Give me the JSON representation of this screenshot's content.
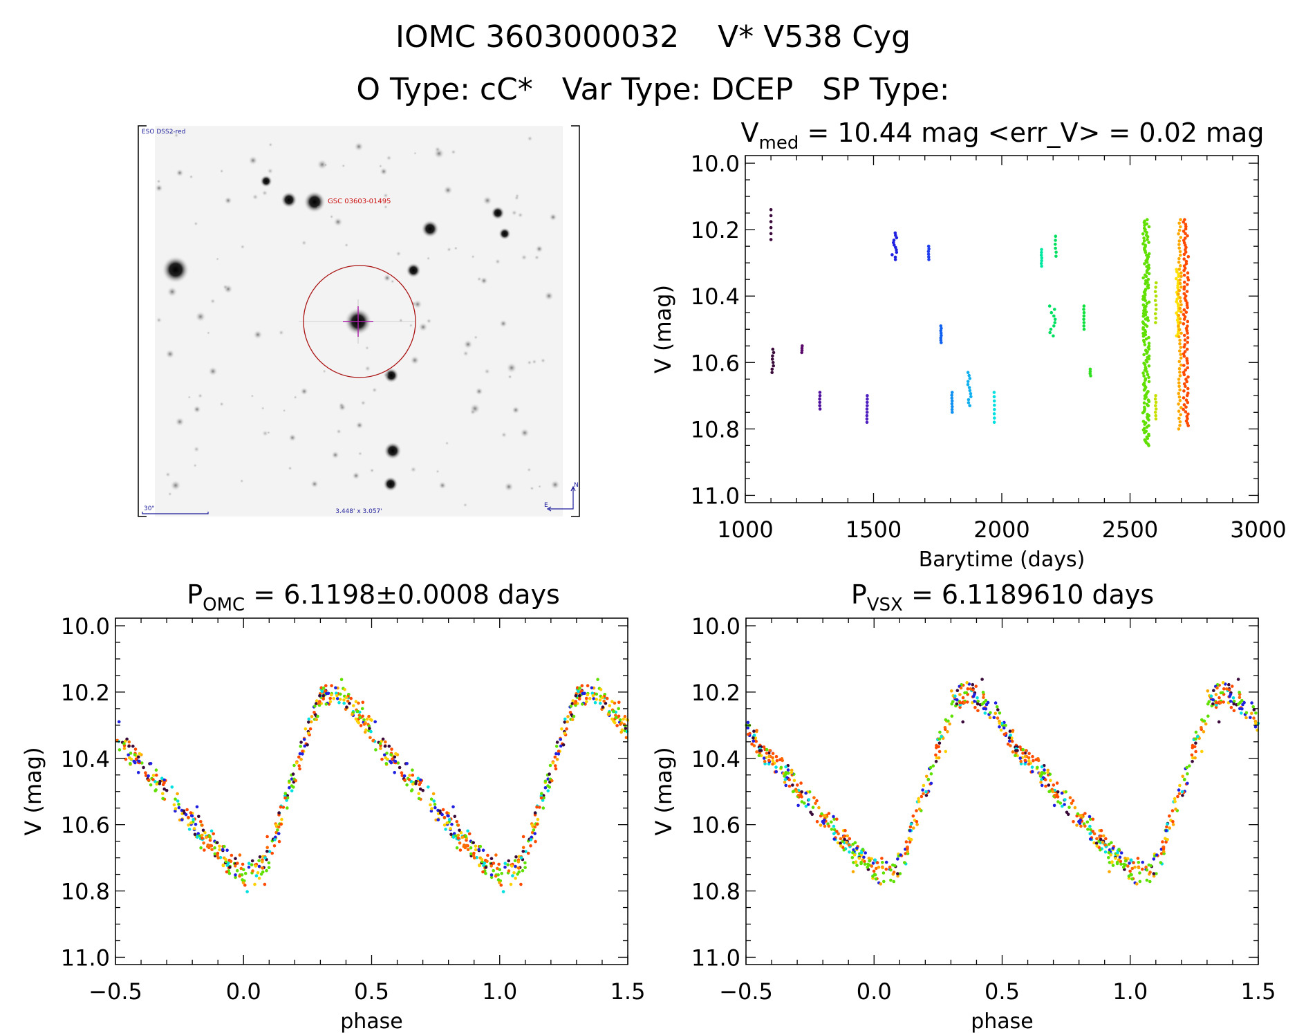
{
  "header": {
    "line1": "IOMC 3603000032    V* V538 Cyg",
    "line2": "O Type: cC*   Var Type: DCEP   SP Type:"
  },
  "sky_image": {
    "survey_label": "ESO DSS2-red",
    "star_label": "GSC 03603-01495",
    "scale_label": "30\"",
    "fov_label": "3.448' x 3.057'",
    "north_label": "N",
    "east_label": "E",
    "colors": {
      "label_blue": "#1a1a9a",
      "label_red": "#cc1111",
      "circle": "#aa1111",
      "cross": "#aa22aa"
    }
  },
  "chart_data": [
    {
      "id": "lightcurve",
      "type": "scatter",
      "title_main": "V",
      "title_sub": "med",
      "title_rest": " = 10.44 mag <err_V> = 0.02 mag",
      "xlabel": "Barytime (days)",
      "ylabel": "V (mag)",
      "xlim": [
        1000,
        3000
      ],
      "ylim": [
        9.977,
        11.022
      ],
      "y_inverted": true,
      "xticks": [
        1000,
        1500,
        2000,
        2500,
        3000
      ],
      "xtick_labels": [
        "1000",
        "1500",
        "2000",
        "2500",
        "3000"
      ],
      "x_minor_step": 100,
      "yticks": [
        10.0,
        10.2,
        10.4,
        10.6,
        10.8,
        11.0
      ],
      "ytick_labels": [
        "10.0",
        "10.2",
        "10.4",
        "10.6",
        "10.8",
        "11.0"
      ],
      "y_minor_step": 0.05,
      "grid": false,
      "clusters": [
        {
          "t": [
            1100,
            1100
          ],
          "v": [
            10.14,
            10.23
          ],
          "n": 6,
          "color": "#3a0a3a"
        },
        {
          "t": [
            1104,
            1112
          ],
          "v": [
            10.56,
            10.63
          ],
          "n": 8,
          "color": "#3a0a3a"
        },
        {
          "t": [
            1220,
            1222
          ],
          "v": [
            10.55,
            10.57
          ],
          "n": 4,
          "color": "#5a0a6a"
        },
        {
          "t": [
            1290,
            1292
          ],
          "v": [
            10.69,
            10.74
          ],
          "n": 6,
          "color": "#5010a0"
        },
        {
          "t": [
            1474,
            1476
          ],
          "v": [
            10.7,
            10.78
          ],
          "n": 9,
          "color": "#5020c0"
        },
        {
          "t": [
            1572,
            1590
          ],
          "v": [
            10.21,
            10.29
          ],
          "n": 12,
          "color": "#2020e0"
        },
        {
          "t": [
            1714,
            1716
          ],
          "v": [
            10.25,
            10.29
          ],
          "n": 6,
          "color": "#2040f0"
        },
        {
          "t": [
            1762,
            1764
          ],
          "v": [
            10.49,
            10.54
          ],
          "n": 8,
          "color": "#1060f0"
        },
        {
          "t": [
            1804,
            1807
          ],
          "v": [
            10.69,
            10.75
          ],
          "n": 8,
          "color": "#1090f0"
        },
        {
          "t": [
            1866,
            1880
          ],
          "v": [
            10.63,
            10.73
          ],
          "n": 12,
          "color": "#10b0f0"
        },
        {
          "t": [
            1970,
            1972
          ],
          "v": [
            10.69,
            10.78
          ],
          "n": 8,
          "color": "#00e0e0"
        },
        {
          "t": [
            2154,
            2156
          ],
          "v": [
            10.26,
            10.31
          ],
          "n": 7,
          "color": "#00e8a0"
        },
        {
          "t": [
            2185,
            2210
          ],
          "v": [
            10.43,
            10.52
          ],
          "n": 10,
          "color": "#00e060"
        },
        {
          "t": [
            2208,
            2212
          ],
          "v": [
            10.22,
            10.28
          ],
          "n": 6,
          "color": "#00e060"
        },
        {
          "t": [
            2319,
            2322
          ],
          "v": [
            10.43,
            10.5
          ],
          "n": 8,
          "color": "#10e040"
        },
        {
          "t": [
            2344,
            2347
          ],
          "v": [
            10.62,
            10.64
          ],
          "n": 4,
          "color": "#30e020"
        },
        {
          "t": [
            2550,
            2575
          ],
          "v": [
            10.17,
            10.85
          ],
          "n": 160,
          "color": "#60e000"
        },
        {
          "t": [
            2598,
            2602
          ],
          "v": [
            10.36,
            10.48
          ],
          "n": 10,
          "color": "#b0e000"
        },
        {
          "t": [
            2598,
            2602
          ],
          "v": [
            10.7,
            10.77
          ],
          "n": 8,
          "color": "#c8e000"
        },
        {
          "t": [
            2680,
            2690
          ],
          "v": [
            10.32,
            10.52
          ],
          "n": 30,
          "color": "#ffe000"
        },
        {
          "t": [
            2688,
            2700
          ],
          "v": [
            10.17,
            10.8
          ],
          "n": 60,
          "color": "#ffa800"
        },
        {
          "t": [
            2708,
            2728
          ],
          "v": [
            10.17,
            10.79
          ],
          "n": 90,
          "color": "#ff4a00"
        }
      ]
    },
    {
      "id": "phase_omc",
      "type": "scatter",
      "title_main": "P",
      "title_sub": "OMC",
      "title_rest": " = 6.1198±0.0008 days",
      "xlabel": "phase",
      "ylabel": "V (mag)",
      "xlim": [
        -0.5,
        1.5
      ],
      "ylim": [
        9.977,
        11.022
      ],
      "y_inverted": true,
      "xticks": [
        -0.5,
        0.0,
        0.5,
        1.0,
        1.5
      ],
      "xtick_labels": [
        "−0.5",
        "0.0",
        "0.5",
        "1.0",
        "1.5"
      ],
      "x_minor_step": 0.1,
      "yticks": [
        10.0,
        10.2,
        10.4,
        10.6,
        10.8,
        11.0
      ],
      "ytick_labels": [
        "10.0",
        "10.2",
        "10.4",
        "10.6",
        "10.8",
        "11.0"
      ],
      "y_minor_step": 0.05,
      "grid": false,
      "phase_shift": 0.0,
      "template": [
        [
          0.0,
          10.75
        ],
        [
          0.05,
          10.74
        ],
        [
          0.1,
          10.7
        ],
        [
          0.15,
          10.56
        ],
        [
          0.2,
          10.45
        ],
        [
          0.25,
          10.32
        ],
        [
          0.3,
          10.22
        ],
        [
          0.35,
          10.2
        ],
        [
          0.4,
          10.23
        ],
        [
          0.45,
          10.26
        ],
        [
          0.5,
          10.32
        ],
        [
          0.55,
          10.38
        ],
        [
          0.6,
          10.42
        ],
        [
          0.65,
          10.46
        ],
        [
          0.7,
          10.5
        ],
        [
          0.75,
          10.55
        ],
        [
          0.8,
          10.59
        ],
        [
          0.85,
          10.63
        ],
        [
          0.9,
          10.68
        ],
        [
          0.95,
          10.72
        ],
        [
          1.0,
          10.75
        ]
      ],
      "palette": [
        "#60e000",
        "#ffa800",
        "#ff4a00",
        "#ffd000",
        "#ff6a00",
        "#60e000",
        "#ff4a00",
        "#2020e0",
        "#00e0e0",
        "#3a0a3a"
      ]
    },
    {
      "id": "phase_vsx",
      "type": "scatter",
      "title_main": "P",
      "title_sub": "VSX",
      "title_rest": " = 6.1189610 days",
      "xlabel": "phase",
      "ylabel": "V (mag)",
      "xlim": [
        -0.5,
        1.5
      ],
      "ylim": [
        9.977,
        11.022
      ],
      "y_inverted": true,
      "xticks": [
        -0.5,
        0.0,
        0.5,
        1.0,
        1.5
      ],
      "xtick_labels": [
        "−0.5",
        "0.0",
        "0.5",
        "1.0",
        "1.5"
      ],
      "x_minor_step": 0.1,
      "yticks": [
        10.0,
        10.2,
        10.4,
        10.6,
        10.8,
        11.0
      ],
      "ytick_labels": [
        "10.0",
        "10.2",
        "10.4",
        "10.6",
        "10.8",
        "11.0"
      ],
      "y_minor_step": 0.05,
      "grid": false,
      "phase_shift": 0.02,
      "template": [
        [
          0.0,
          10.75
        ],
        [
          0.05,
          10.74
        ],
        [
          0.1,
          10.7
        ],
        [
          0.15,
          10.56
        ],
        [
          0.2,
          10.45
        ],
        [
          0.25,
          10.32
        ],
        [
          0.3,
          10.22
        ],
        [
          0.35,
          10.2
        ],
        [
          0.4,
          10.23
        ],
        [
          0.45,
          10.26
        ],
        [
          0.5,
          10.32
        ],
        [
          0.55,
          10.38
        ],
        [
          0.6,
          10.42
        ],
        [
          0.65,
          10.46
        ],
        [
          0.7,
          10.5
        ],
        [
          0.75,
          10.55
        ],
        [
          0.8,
          10.59
        ],
        [
          0.85,
          10.63
        ],
        [
          0.9,
          10.68
        ],
        [
          0.95,
          10.72
        ],
        [
          1.0,
          10.75
        ]
      ],
      "palette": [
        "#60e000",
        "#ffa800",
        "#ff4a00",
        "#ffd000",
        "#ff6a00",
        "#60e000",
        "#ff4a00",
        "#2020e0",
        "#00e0e0",
        "#3a0a3a"
      ]
    }
  ]
}
